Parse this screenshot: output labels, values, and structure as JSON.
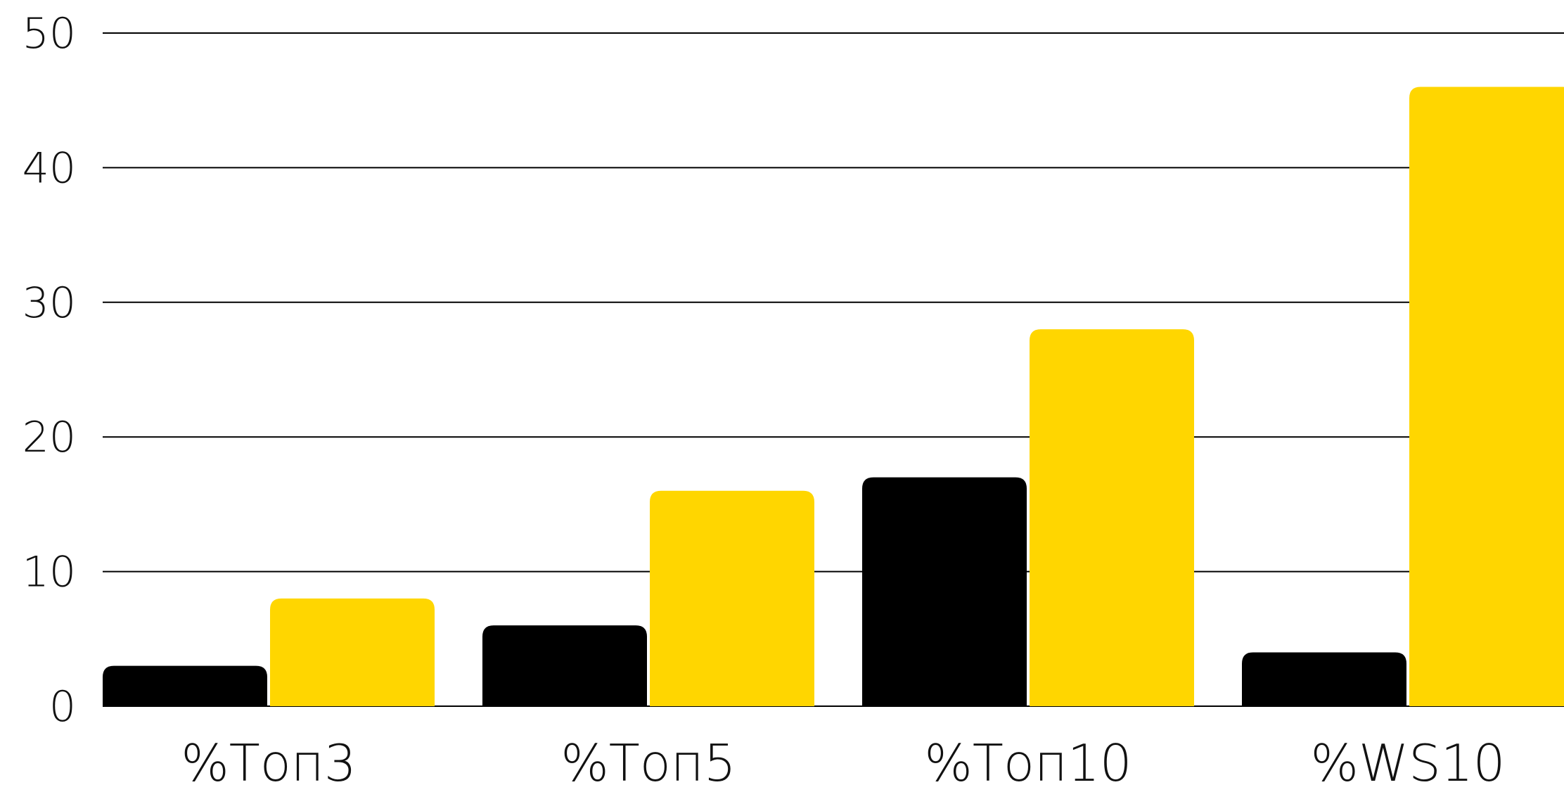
{
  "chart_data": {
    "type": "bar",
    "categories": [
      "%Топ3",
      "%Топ5",
      "%Топ10",
      "%WS10"
    ],
    "series": [
      {
        "values": [
          3,
          6,
          17,
          4
        ]
      },
      {
        "values": [
          8,
          16,
          28,
          46
        ]
      }
    ],
    "ylim": [
      0,
      50
    ],
    "yticks": [
      "0",
      "10",
      "20",
      "30",
      "40",
      "50"
    ],
    "grid": true,
    "legend": "none"
  },
  "colors": {
    "series_1": "#000000",
    "series_2": "#FFD600",
    "gridline": "#000000",
    "background": "#ffffff"
  }
}
